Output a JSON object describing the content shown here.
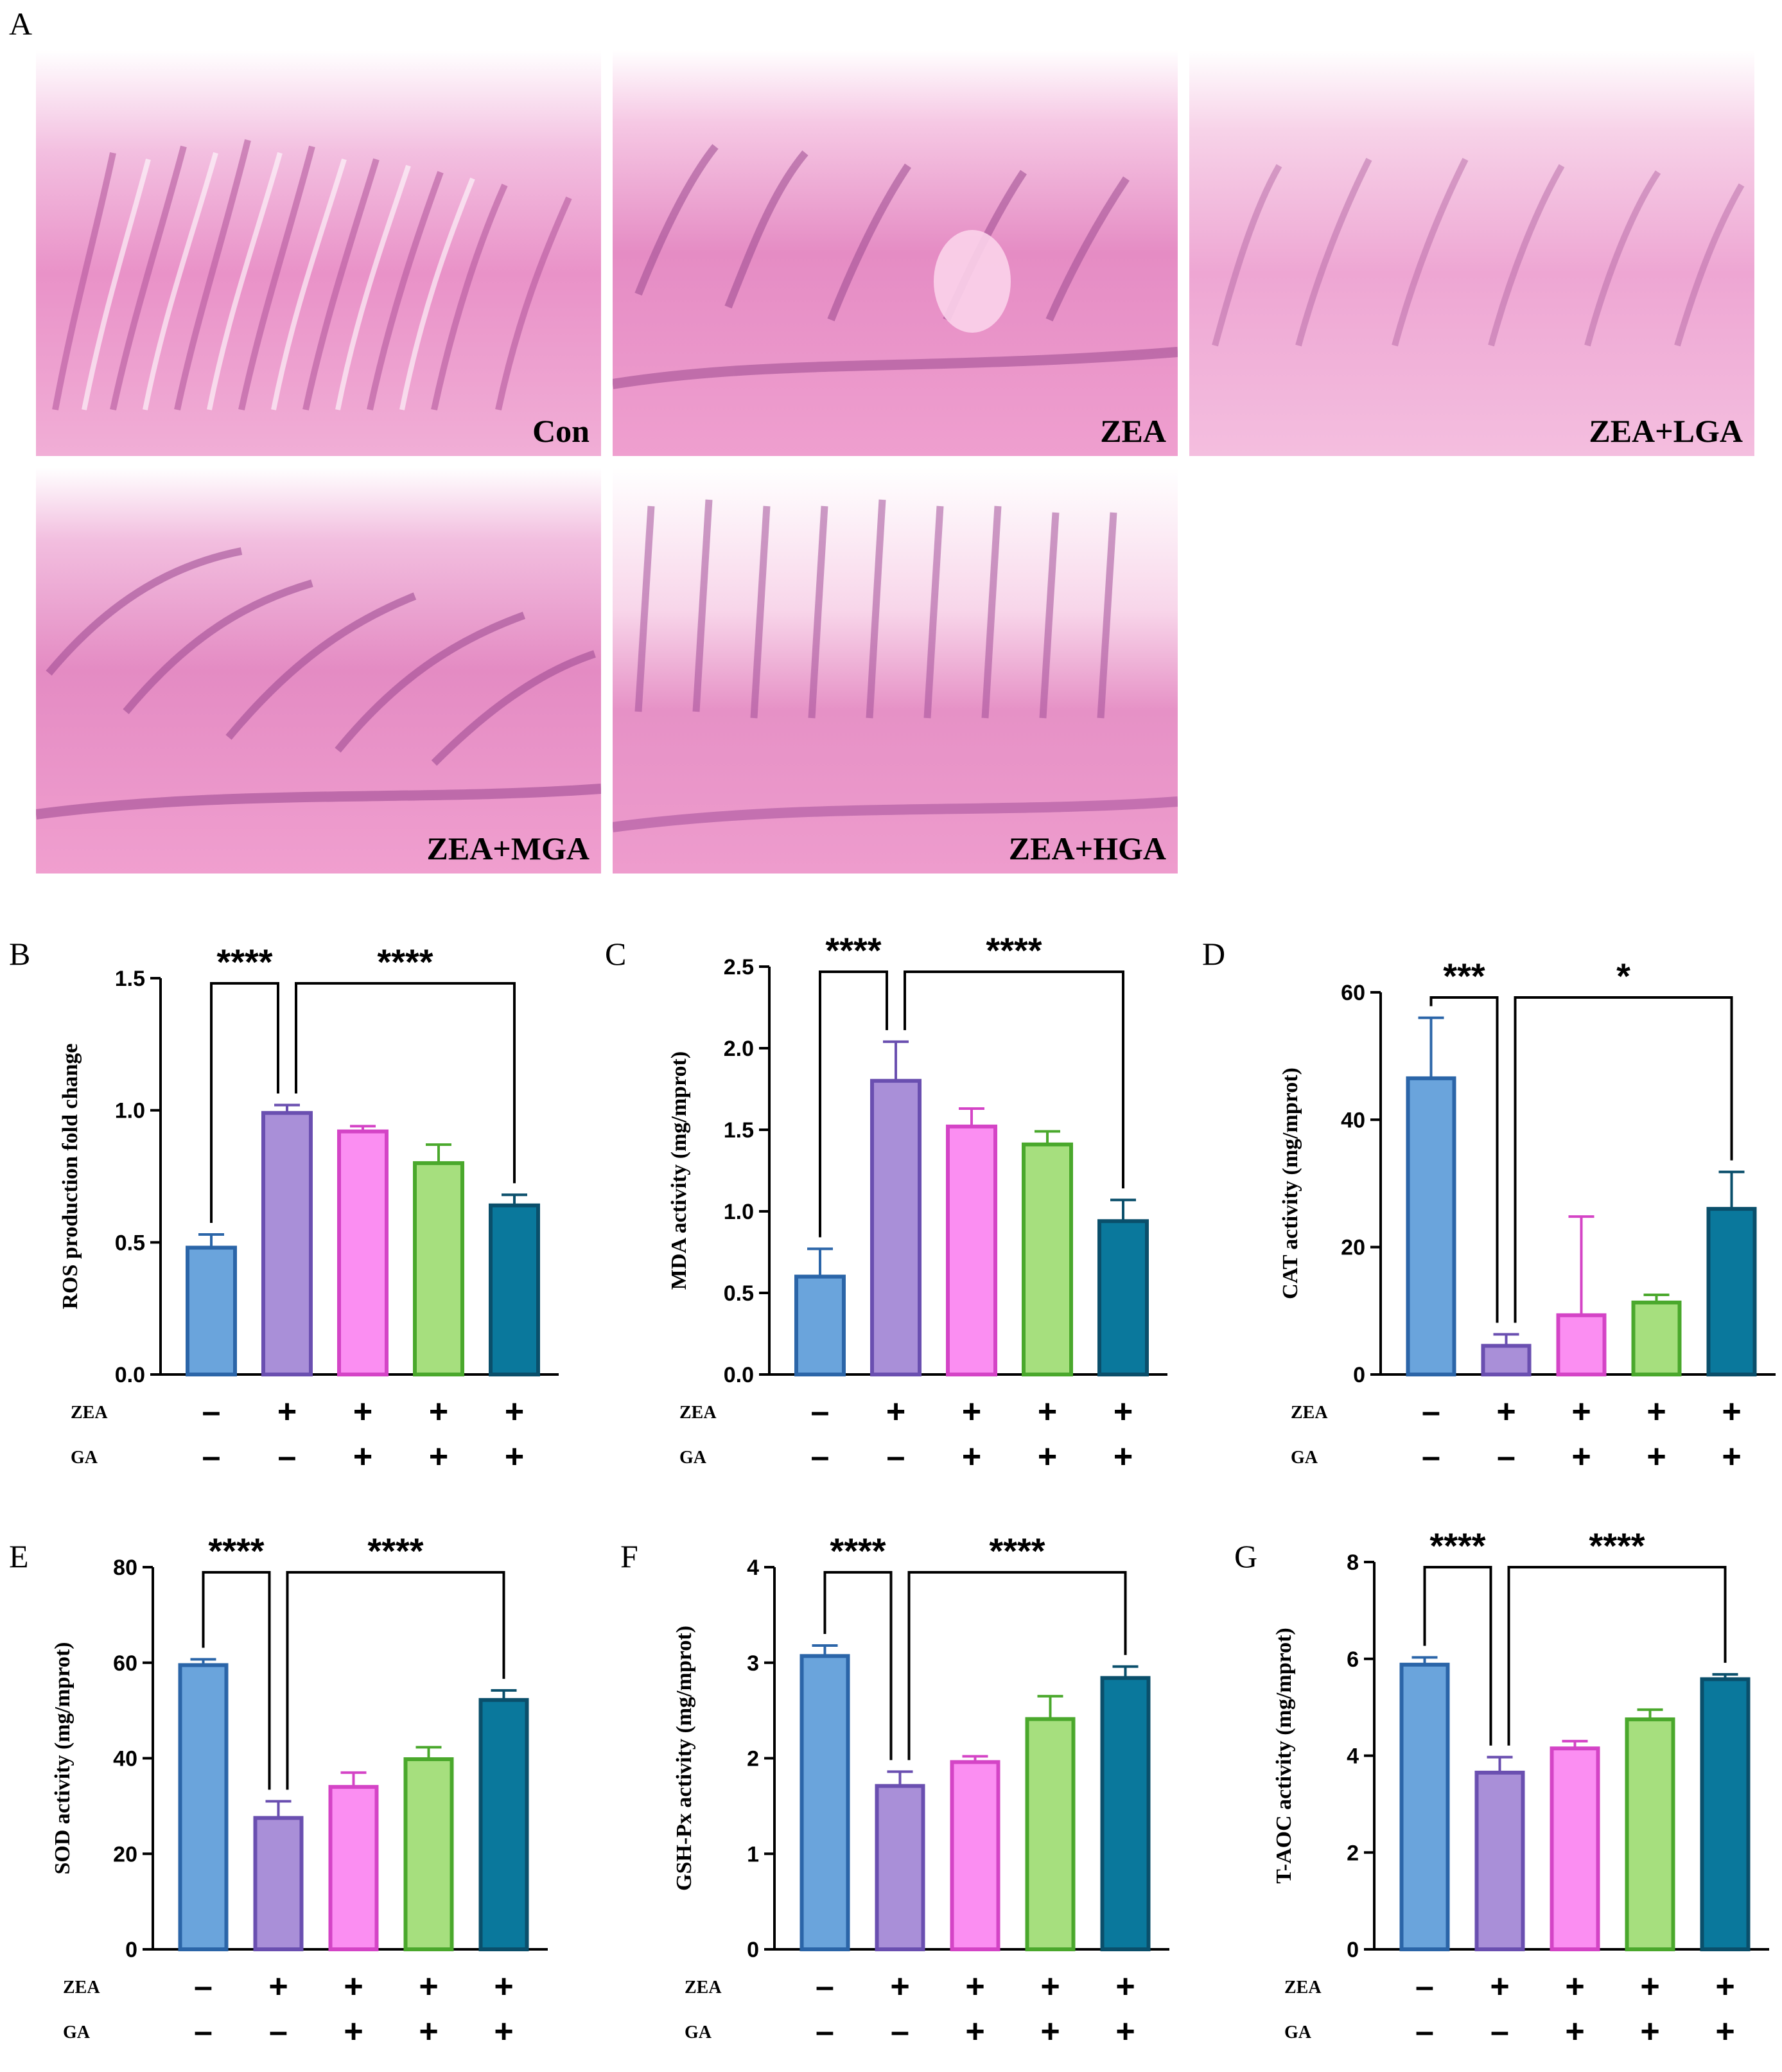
{
  "panel_a": {
    "letter": "A",
    "images": [
      {
        "caption": "Con"
      },
      {
        "caption": "ZEA"
      },
      {
        "caption": "ZEA+LGA"
      },
      {
        "caption": "ZEA+MGA"
      },
      {
        "caption": "ZEA+HGA"
      }
    ]
  },
  "colors": {
    "fills": [
      "#6aa4dc",
      "#a98fd8",
      "#fb8ef2",
      "#a6df7e",
      "#0a789c"
    ],
    "strokes": [
      "#2b65a8",
      "#6a4fb0",
      "#d444c6",
      "#4aa82c",
      "#0a4f6b"
    ]
  },
  "chart_data": [
    {
      "letter": "B",
      "type": "bar",
      "ylabel": "ROS production fold change",
      "ylim": [
        0,
        1.5
      ],
      "ticks": [
        "0.0",
        "0.5",
        "1.0",
        "1.5"
      ],
      "values": [
        0.48,
        0.99,
        0.92,
        0.8,
        0.64
      ],
      "errors": [
        0.05,
        0.03,
        0.02,
        0.07,
        0.04
      ],
      "zea_row_label": "ZEA",
      "ga_row_label": "GA",
      "zea": [
        "–",
        "+",
        "+",
        "+",
        "+"
      ],
      "ga": [
        "–",
        "–",
        "+",
        "+",
        "+"
      ],
      "sig": [
        {
          "text": "****",
          "from": 0,
          "to": 1
        },
        {
          "text": "****",
          "from": 1,
          "to": 4
        }
      ]
    },
    {
      "letter": "C",
      "type": "bar",
      "ylabel": "MDA activity (mg/mprot)",
      "ylim": [
        0,
        2.5
      ],
      "ticks": [
        "0.0",
        "0.5",
        "1.0",
        "1.5",
        "2.0",
        "2.5"
      ],
      "values": [
        0.6,
        1.8,
        1.52,
        1.41,
        0.94
      ],
      "errors": [
        0.17,
        0.24,
        0.11,
        0.08,
        0.13
      ],
      "zea_row_label": "ZEA",
      "ga_row_label": "GA",
      "zea": [
        "–",
        "+",
        "+",
        "+",
        "+"
      ],
      "ga": [
        "–",
        "–",
        "+",
        "+",
        "+"
      ],
      "sig": [
        {
          "text": "****",
          "from": 0,
          "to": 1
        },
        {
          "text": "****",
          "from": 1,
          "to": 4
        }
      ]
    },
    {
      "letter": "D",
      "type": "bar",
      "ylabel": "CAT activity (mg/mprot)",
      "ylim": [
        0,
        60
      ],
      "ticks": [
        "0",
        "20",
        "40",
        "60"
      ],
      "values": [
        46.5,
        4.5,
        9.3,
        11.3,
        26.0
      ],
      "errors": [
        9.5,
        1.8,
        15.5,
        1.2,
        5.8
      ],
      "zea_row_label": "ZEA",
      "ga_row_label": "GA",
      "zea": [
        "–",
        "+",
        "+",
        "+",
        "+"
      ],
      "ga": [
        "–",
        "–",
        "+",
        "+",
        "+"
      ],
      "sig": [
        {
          "text": "***",
          "from": 0,
          "to": 1
        },
        {
          "text": "*",
          "from": 1,
          "to": 4
        }
      ]
    },
    {
      "letter": "E",
      "type": "bar",
      "ylabel": "SOD activity (mg/mprot)",
      "ylim": [
        0,
        80
      ],
      "ticks": [
        "0",
        "20",
        "40",
        "60",
        "80"
      ],
      "values": [
        59.5,
        27.5,
        34.0,
        39.8,
        52.2
      ],
      "errors": [
        1.2,
        3.5,
        3.0,
        2.5,
        2.0
      ],
      "zea_row_label": "ZEA",
      "ga_row_label": "GA",
      "zea": [
        "–",
        "+",
        "+",
        "+",
        "+"
      ],
      "ga": [
        "–",
        "–",
        "+",
        "+",
        "+"
      ],
      "sig": [
        {
          "text": "****",
          "from": 0,
          "to": 1
        },
        {
          "text": "****",
          "from": 1,
          "to": 4
        }
      ]
    },
    {
      "letter": "F",
      "type": "bar",
      "ylabel": "GSH-Px activity (mg/mprot)",
      "ylim": [
        0,
        4
      ],
      "ticks": [
        "0",
        "1",
        "2",
        "3",
        "4"
      ],
      "values": [
        3.07,
        1.71,
        1.96,
        2.41,
        2.84
      ],
      "errors": [
        0.11,
        0.15,
        0.06,
        0.24,
        0.12
      ],
      "zea_row_label": "ZEA",
      "ga_row_label": "GA",
      "zea": [
        "–",
        "+",
        "+",
        "+",
        "+"
      ],
      "ga": [
        "–",
        "–",
        "+",
        "+",
        "+"
      ],
      "sig": [
        {
          "text": "****",
          "from": 0,
          "to": 1
        },
        {
          "text": "****",
          "from": 1,
          "to": 4
        }
      ]
    },
    {
      "letter": "G",
      "type": "bar",
      "ylabel": "T-AOC activity (mg/mprot)",
      "ylim": [
        0,
        8
      ],
      "ticks": [
        "0",
        "2",
        "4",
        "6",
        "8"
      ],
      "values": [
        5.88,
        3.65,
        4.15,
        4.75,
        5.58
      ],
      "errors": [
        0.15,
        0.32,
        0.15,
        0.2,
        0.1
      ],
      "zea_row_label": "ZEA",
      "ga_row_label": "GA",
      "zea": [
        "–",
        "+",
        "+",
        "+",
        "+"
      ],
      "ga": [
        "–",
        "–",
        "+",
        "+",
        "+"
      ],
      "sig": [
        {
          "text": "****",
          "from": 0,
          "to": 1
        },
        {
          "text": "****",
          "from": 1,
          "to": 4
        }
      ]
    }
  ]
}
